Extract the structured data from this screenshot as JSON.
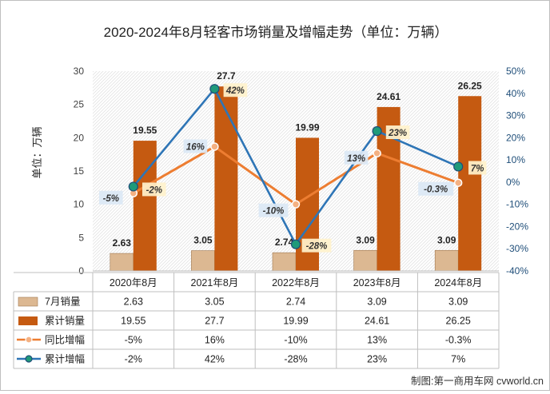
{
  "chart_data": {
    "type": "bar",
    "title": "2020-2024年8月轻客市场销量及增幅走势（单位：万辆）",
    "ylabel": "单位：万辆",
    "ylim": [
      0,
      30
    ],
    "y2lim": [
      -40,
      50
    ],
    "categories": [
      "2020年8月",
      "2021年8月",
      "2022年8月",
      "2023年8月",
      "2024年8月"
    ],
    "left_ticks": [
      "0",
      "5",
      "10",
      "15",
      "20",
      "25",
      "30"
    ],
    "right_ticks": [
      "-40%",
      "-30%",
      "-20%",
      "-10%",
      "0%",
      "10%",
      "20%",
      "30%",
      "40%",
      "50%"
    ],
    "series": [
      {
        "name": "7月销量",
        "kind": "bar",
        "color": "#dcb892",
        "values": [
          2.63,
          3.05,
          2.74,
          3.09,
          3.09
        ],
        "labels": [
          "2.63",
          "3.05",
          "2.74",
          "3.09",
          "3.09"
        ]
      },
      {
        "name": "累计销量",
        "kind": "bar",
        "color": "#c55a11",
        "values": [
          19.55,
          27.7,
          19.99,
          24.61,
          26.25
        ],
        "labels": [
          "19.55",
          "27.7",
          "19.99",
          "24.61",
          "26.25"
        ]
      },
      {
        "name": "同比增幅",
        "kind": "line",
        "axis": "right",
        "color": "#ed7d31",
        "values": [
          -5,
          16,
          -10,
          13,
          -0.3
        ],
        "labels": [
          "-5%",
          "16%",
          "-10%",
          "13%",
          "-0.3%"
        ]
      },
      {
        "name": "累计增幅",
        "kind": "line",
        "axis": "right",
        "color": "#2e75b6",
        "values": [
          -2,
          42,
          -28,
          23,
          7
        ],
        "labels": [
          "-2%",
          "42%",
          "-28%",
          "23%",
          "7%"
        ]
      }
    ],
    "legend": "table-below",
    "grid": false,
    "source": "制图:第一商用车网 cvworld.cn"
  }
}
